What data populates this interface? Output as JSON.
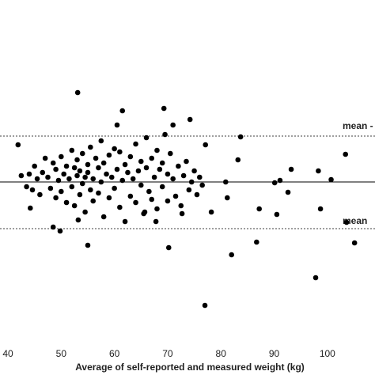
{
  "chart_data": {
    "type": "scatter",
    "x_label": "Average of self-reported and measured weight (kg)",
    "xlim": [
      38.51,
      108.94
    ],
    "xticks": [
      40,
      50,
      60,
      70,
      80,
      90,
      100
    ],
    "ylim": [
      -10,
      11.5
    ],
    "hlines": [
      {
        "value": 0,
        "dashed": false
      },
      {
        "value": 2.9,
        "dashed": true
      },
      {
        "value": -2.95,
        "dashed": true
      }
    ],
    "annotations": [
      {
        "text": "mean -",
        "y": 2.9
      },
      {
        "text": "mean",
        "y": -2.95
      }
    ],
    "series": [
      {
        "color": "#000000",
        "x": [
          53.1,
          61.5,
          69.3,
          74.2,
          60.5,
          41.9,
          83.7,
          77.1,
          103.4,
          93.2,
          98.3,
          55,
          70.2,
          82,
          86.7,
          105.1,
          97.8,
          77,
          49.8,
          48.5,
          103.6,
          98.7,
          90.5,
          87.2,
          92.6,
          90.1,
          91.1,
          100.7,
          83.2,
          80.9,
          81.2,
          78.2,
          72.7,
          67.8,
          65.7,
          53.2,
          44.2,
          44.6,
          42.5,
          43.5,
          44,
          45,
          45.5,
          46,
          46.5,
          47,
          47.5,
          48,
          48.5,
          49,
          49,
          49.5,
          50,
          50,
          50.5,
          51,
          51,
          51.5,
          52,
          52,
          52.5,
          52.5,
          53,
          53,
          53.5,
          53.5,
          54,
          54,
          54.5,
          54.5,
          55,
          55,
          55.5,
          55.5,
          56,
          56,
          56.5,
          57,
          57,
          57.5,
          57.5,
          58,
          58,
          58.5,
          59,
          59,
          59.5,
          60,
          60,
          60.5,
          61,
          61,
          61.5,
          62,
          62,
          62.5,
          63,
          63,
          63.5,
          64,
          64,
          64.5,
          65,
          65,
          65.5,
          66,
          66,
          66.5,
          67,
          67,
          67.5,
          68,
          68,
          68.5,
          69,
          69,
          69.5,
          70,
          70,
          70.5,
          71,
          71,
          71.5,
          72,
          72.5,
          73,
          73.5,
          74,
          74.5,
          75,
          75.5,
          76,
          76.5
        ],
        "y": [
          5.65,
          4.5,
          4.65,
          3.95,
          3.6,
          2.35,
          2.85,
          2.35,
          1.75,
          0.8,
          0.7,
          -4,
          -4.15,
          -4.6,
          -3.8,
          -3.85,
          -6.05,
          -7.8,
          -3.1,
          -2.85,
          -2.55,
          -1.7,
          -2.05,
          -1.7,
          -0.65,
          -0.05,
          0.1,
          0.15,
          1.4,
          0,
          -1,
          -1.9,
          -2,
          -2.5,
          -1.9,
          -2.4,
          -1.65,
          -0.5,
          0.4,
          -0.3,
          0.5,
          1,
          0.2,
          -0.8,
          0.6,
          1.5,
          0.3,
          -0.4,
          1.2,
          0.8,
          -1,
          0.1,
          1.6,
          -0.6,
          0.5,
          -1.3,
          1,
          0.2,
          2,
          -0.3,
          0.9,
          -1.5,
          0.4,
          1.4,
          -0.8,
          0.7,
          1.8,
          -0.1,
          0.3,
          -1.9,
          1.1,
          0.6,
          -0.5,
          2.2,
          0.2,
          -1.2,
          1.5,
          0.9,
          -0.7,
          2.6,
          0,
          1.2,
          -2.2,
          0.5,
          1.7,
          -1,
          0.3,
          2.1,
          -0.4,
          0.8,
          -1.6,
          1.9,
          0.1,
          1.1,
          -2.5,
          0.6,
          -0.9,
          1.6,
          0.2,
          2.4,
          -1.3,
          0.7,
          -0.2,
          1.3,
          -2,
          0.9,
          2.8,
          -0.6,
          1.5,
          -1.1,
          0.3,
          2,
          -1.7,
          0.8,
          1.2,
          -0.3,
          3,
          0.5,
          -1.2,
          1.8,
          3.6,
          0.2,
          -0.9,
          1,
          -1.5,
          0.4,
          1.3,
          -0.5,
          0,
          0.7,
          -0.8,
          0.3,
          -0.2
        ]
      }
    ]
  }
}
